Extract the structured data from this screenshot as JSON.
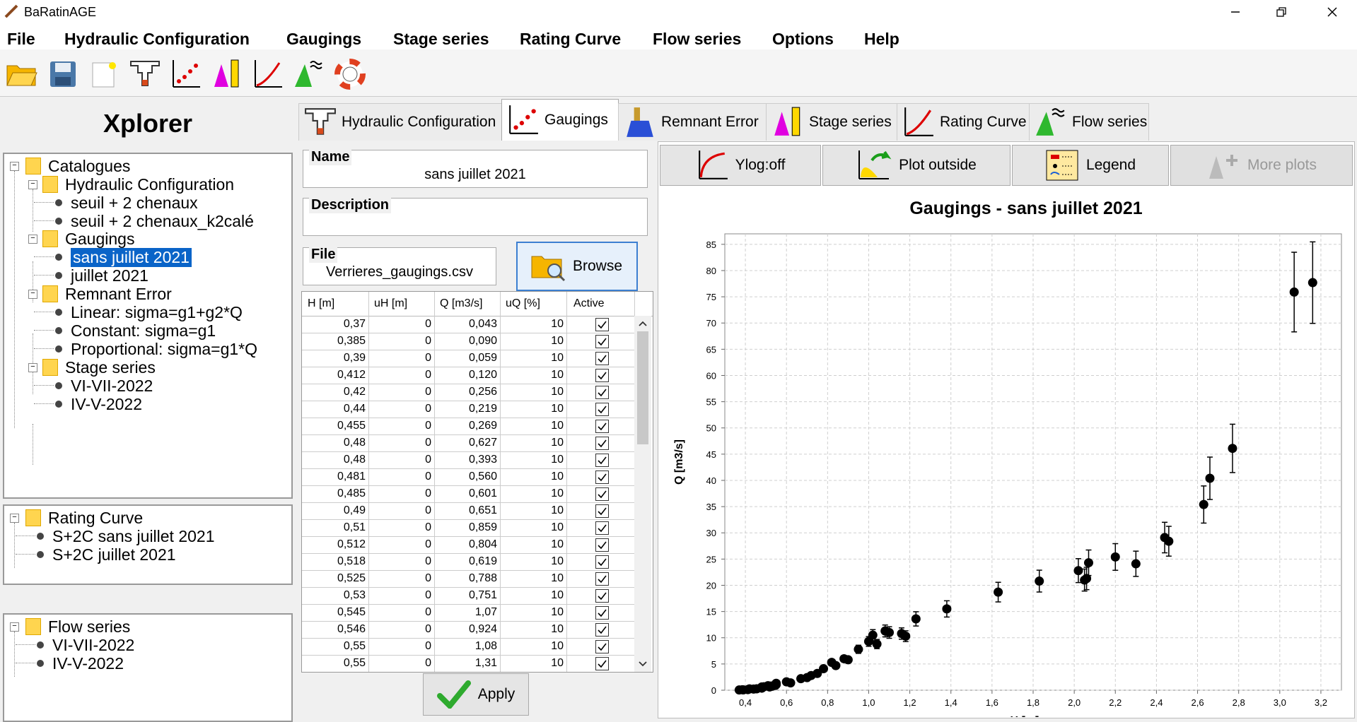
{
  "window": {
    "title": "BaRatinAGE"
  },
  "menu": [
    "File",
    "Hydraulic Configuration",
    "Gaugings",
    "Stage series",
    "Rating Curve",
    "Flow series",
    "Options",
    "Help"
  ],
  "toolbar_icons": [
    "open-folder-icon",
    "save-icon",
    "new-document-icon",
    "hydraulic-config-icon",
    "gaugings-icon",
    "stage-series-icon",
    "rating-curve-icon",
    "flow-series-icon",
    "help-lifebuoy-icon"
  ],
  "explorer": {
    "title": "Xplorer",
    "catalogues": {
      "label": "Catalogues",
      "groups": [
        {
          "label": "Hydraulic Configuration",
          "items": [
            "seuil + 2 chenaux",
            "seuil + 2 chenaux_k2calé"
          ]
        },
        {
          "label": "Gaugings",
          "items": [
            "sans juillet 2021",
            "juillet 2021"
          ]
        },
        {
          "label": "Remnant Error",
          "items": [
            "Linear: sigma=g1+g2*Q",
            "Constant: sigma=g1",
            "Proportional: sigma=g1*Q"
          ]
        },
        {
          "label": "Stage series",
          "items": [
            "VI-VII-2022",
            "IV-V-2022"
          ]
        }
      ]
    },
    "rating_curve": {
      "label": "Rating Curve",
      "items": [
        "S+2C sans juillet 2021",
        "S+2C juillet 2021"
      ]
    },
    "flow_series": {
      "label": "Flow series",
      "items": [
        "VI-VII-2022",
        "IV-V-2022"
      ]
    }
  },
  "tabs": [
    {
      "label": "Hydraulic Configuration",
      "icon": "hydraulic-config-icon"
    },
    {
      "label": "Gaugings",
      "icon": "gaugings-icon",
      "active": true
    },
    {
      "label": "Remnant Error",
      "icon": "remnant-error-icon"
    },
    {
      "label": "Stage series",
      "icon": "stage-series-icon"
    },
    {
      "label": "Rating Curve",
      "icon": "rating-curve-icon"
    },
    {
      "label": "Flow series",
      "icon": "flow-series-icon"
    }
  ],
  "form": {
    "name_label": "Name",
    "name_value": "sans juillet 2021",
    "description_label": "Description",
    "description_value": "",
    "file_label": "File",
    "file_value": "Verrieres_gaugings.csv",
    "browse_label": "Browse",
    "apply_label": "Apply"
  },
  "table": {
    "columns": [
      "H [m]",
      "uH [m]",
      "Q [m3/s]",
      "uQ [%]",
      "Active"
    ],
    "rows": [
      [
        "0,37",
        "0",
        "0,043",
        "10",
        true
      ],
      [
        "0,385",
        "0",
        "0,090",
        "10",
        true
      ],
      [
        "0,39",
        "0",
        "0,059",
        "10",
        true
      ],
      [
        "0,412",
        "0",
        "0,120",
        "10",
        true
      ],
      [
        "0,42",
        "0",
        "0,256",
        "10",
        true
      ],
      [
        "0,44",
        "0",
        "0,219",
        "10",
        true
      ],
      [
        "0,455",
        "0",
        "0,269",
        "10",
        true
      ],
      [
        "0,48",
        "0",
        "0,627",
        "10",
        true
      ],
      [
        "0,48",
        "0",
        "0,393",
        "10",
        true
      ],
      [
        "0,481",
        "0",
        "0,560",
        "10",
        true
      ],
      [
        "0,485",
        "0",
        "0,601",
        "10",
        true
      ],
      [
        "0,49",
        "0",
        "0,651",
        "10",
        true
      ],
      [
        "0,51",
        "0",
        "0,859",
        "10",
        true
      ],
      [
        "0,512",
        "0",
        "0,804",
        "10",
        true
      ],
      [
        "0,518",
        "0",
        "0,619",
        "10",
        true
      ],
      [
        "0,525",
        "0",
        "0,788",
        "10",
        true
      ],
      [
        "0,53",
        "0",
        "0,751",
        "10",
        true
      ],
      [
        "0,545",
        "0",
        "1,07",
        "10",
        true
      ],
      [
        "0,546",
        "0",
        "0,924",
        "10",
        true
      ],
      [
        "0,55",
        "0",
        "1,08",
        "10",
        true
      ],
      [
        "0,55",
        "0",
        "1,31",
        "10",
        true
      ]
    ]
  },
  "plot_toolbar": [
    {
      "label": "Ylog:off",
      "icon": "ylog-icon",
      "enabled": true
    },
    {
      "label": "Plot outside",
      "icon": "plot-outside-icon",
      "enabled": true
    },
    {
      "label": "Legend",
      "icon": "legend-icon",
      "enabled": true
    },
    {
      "label": "More plots",
      "icon": "more-plots-icon",
      "enabled": false
    }
  ],
  "chart_data": {
    "type": "scatter",
    "title": "Gaugings - sans juillet 2021",
    "xlabel": "H [m]",
    "ylabel": "Q [m3/s]",
    "xlim": [
      0.3,
      3.3
    ],
    "ylim": [
      0,
      87
    ],
    "xticks": [
      "0,4",
      "0,6",
      "0,8",
      "1,0",
      "1,2",
      "1,4",
      "1,6",
      "1,8",
      "2,0",
      "2,2",
      "2,4",
      "2,6",
      "2,8",
      "3,0",
      "3,2"
    ],
    "yticks": [
      "0",
      "5",
      "10",
      "15",
      "20",
      "25",
      "30",
      "35",
      "40",
      "45",
      "50",
      "55",
      "60",
      "65",
      "70",
      "75",
      "80",
      "85"
    ],
    "grid": true,
    "error_bars": "±2×uQ",
    "points": [
      [
        0.37,
        0.043
      ],
      [
        0.385,
        0.09
      ],
      [
        0.39,
        0.059
      ],
      [
        0.412,
        0.12
      ],
      [
        0.42,
        0.256
      ],
      [
        0.44,
        0.219
      ],
      [
        0.455,
        0.269
      ],
      [
        0.48,
        0.627
      ],
      [
        0.48,
        0.393
      ],
      [
        0.481,
        0.56
      ],
      [
        0.485,
        0.601
      ],
      [
        0.49,
        0.651
      ],
      [
        0.51,
        0.859
      ],
      [
        0.512,
        0.804
      ],
      [
        0.518,
        0.619
      ],
      [
        0.525,
        0.788
      ],
      [
        0.53,
        0.751
      ],
      [
        0.545,
        1.07
      ],
      [
        0.546,
        0.924
      ],
      [
        0.55,
        1.08
      ],
      [
        0.55,
        1.31
      ],
      [
        0.6,
        1.6
      ],
      [
        0.62,
        1.4
      ],
      [
        0.67,
        2.2
      ],
      [
        0.7,
        2.4
      ],
      [
        0.72,
        2.8
      ],
      [
        0.75,
        3.2
      ],
      [
        0.78,
        4.1
      ],
      [
        0.82,
        5.3
      ],
      [
        0.84,
        4.7
      ],
      [
        0.88,
        6.0
      ],
      [
        0.9,
        5.8
      ],
      [
        0.95,
        7.8
      ],
      [
        1.0,
        9.3
      ],
      [
        1.02,
        10.5
      ],
      [
        1.04,
        8.8
      ],
      [
        1.08,
        11.3
      ],
      [
        1.1,
        11.0
      ],
      [
        1.16,
        10.8
      ],
      [
        1.18,
        10.3
      ],
      [
        1.23,
        13.6
      ],
      [
        1.38,
        15.5
      ],
      [
        1.63,
        18.7
      ],
      [
        1.83,
        20.8
      ],
      [
        2.02,
        22.8
      ],
      [
        2.05,
        21.0
      ],
      [
        2.06,
        21.3
      ],
      [
        2.07,
        24.3
      ],
      [
        2.2,
        25.4
      ],
      [
        2.3,
        24.1
      ],
      [
        2.44,
        29.1
      ],
      [
        2.46,
        28.4
      ],
      [
        2.63,
        35.4
      ],
      [
        2.66,
        40.4
      ],
      [
        2.77,
        46.1
      ],
      [
        3.07,
        75.9
      ],
      [
        3.16,
        77.7
      ]
    ]
  }
}
